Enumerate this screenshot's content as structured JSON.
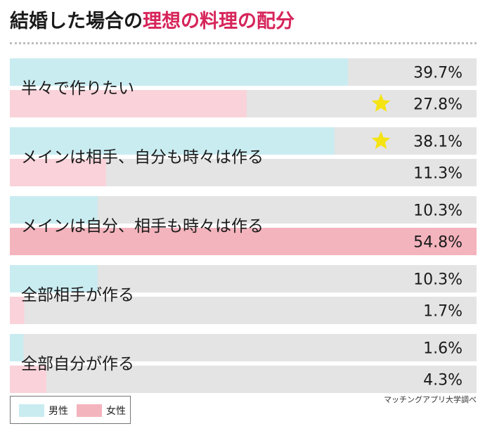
{
  "title": {
    "main": "結婚した場合の",
    "accent": "理想の料理の配分"
  },
  "chart_data": {
    "type": "bar",
    "orientation": "horizontal",
    "title": "結婚した場合の理想の料理の配分",
    "categories": [
      "半々で作りたい",
      "メインは相手、自分も時々は作る",
      "メインは自分、相手も時々は作る",
      "全部相手が作る",
      "全部自分が作る"
    ],
    "series": [
      {
        "name": "男性",
        "values": [
          39.7,
          38.1,
          10.3,
          10.3,
          1.6
        ],
        "labels": [
          "39.7%",
          "38.1%",
          "10.3%",
          "10.3%",
          "1.6%"
        ],
        "stars": [
          false,
          true,
          false,
          false,
          false
        ],
        "color": "#c9ecf1"
      },
      {
        "name": "女性",
        "values": [
          27.8,
          11.3,
          54.8,
          1.7,
          4.3
        ],
        "labels": [
          "27.8%",
          "11.3%",
          "54.8%",
          "1.7%",
          "4.3%"
        ],
        "stars": [
          true,
          false,
          false,
          false,
          false
        ],
        "color": "#fad2da"
      }
    ],
    "xlim": [
      0,
      54.8
    ],
    "highlight": {
      "series": 1,
      "category": 2,
      "color": "#f4b4bd"
    },
    "track_color": "#e4e4e4",
    "star_color": "#f5e313",
    "xlabel": "",
    "ylabel": ""
  },
  "legend": {
    "male_label": "男性",
    "female_label": "女性"
  },
  "source": "マッチングアプリ大学調べ"
}
